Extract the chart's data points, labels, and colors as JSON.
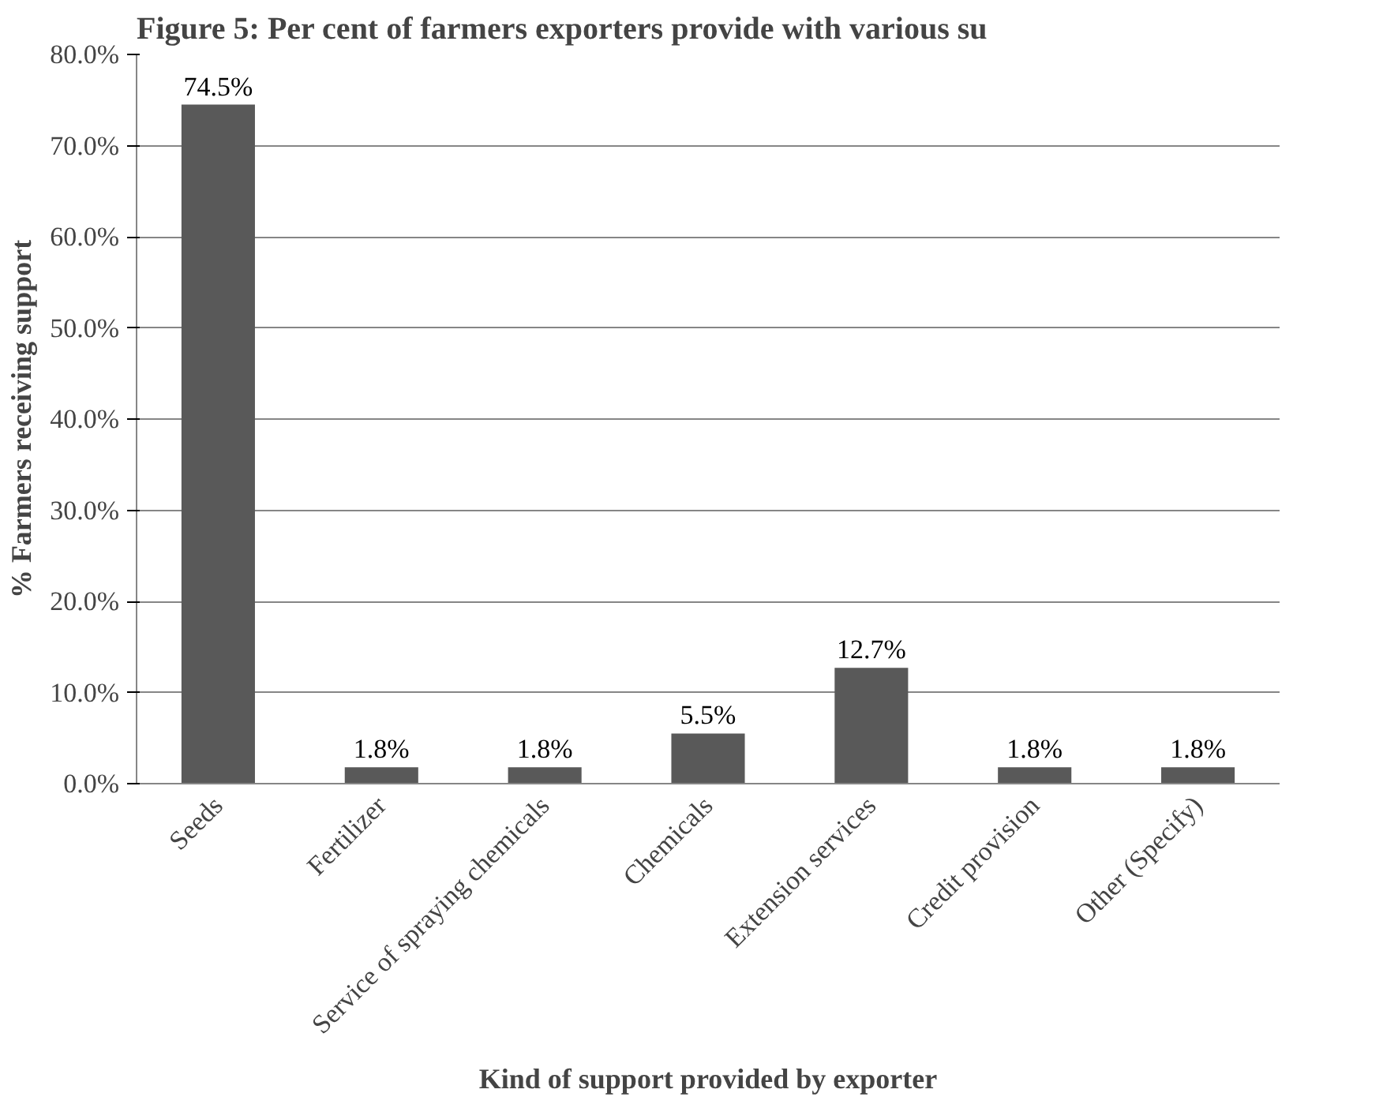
{
  "chart_data": {
    "type": "bar",
    "title": "Figure 5: Per cent of farmers exporters provide with various su",
    "xlabel": "Kind of support provided by exporter",
    "ylabel": "% Farmers receiving support",
    "categories": [
      "Seeds",
      "Fertilizer",
      "Service of spraying chemicals",
      "Chemicals",
      "Extension services",
      "Credit provision",
      "Other (Specify)"
    ],
    "values": [
      74.5,
      1.8,
      1.8,
      5.5,
      12.7,
      1.8,
      1.8
    ],
    "color": "#595959",
    "ylim": [
      0,
      80
    ],
    "yticks": [
      {
        "value": 0,
        "label": "0.0%"
      },
      {
        "value": 10,
        "label": "10.0%"
      },
      {
        "value": 20,
        "label": "20.0%"
      },
      {
        "value": 30,
        "label": "30.0%"
      },
      {
        "value": 40,
        "label": "40.0%"
      },
      {
        "value": 50,
        "label": "50.0%"
      },
      {
        "value": 60,
        "label": "60.0%"
      },
      {
        "value": 70,
        "label": "70.0%"
      },
      {
        "value": 80,
        "label": "80.0%"
      }
    ],
    "value_labels": [
      "74.5%",
      "1.8%",
      "1.8%",
      "5.5%",
      "12.7%",
      "1.8%",
      "1.8%"
    ],
    "grid": "y"
  }
}
